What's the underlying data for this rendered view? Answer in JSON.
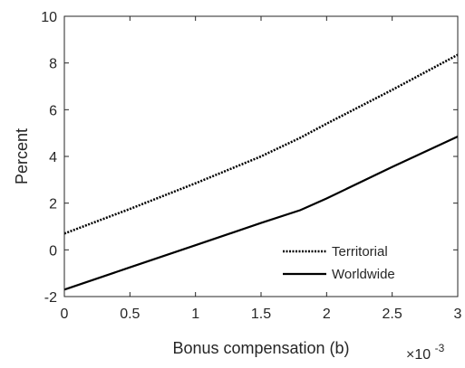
{
  "chart_data": {
    "type": "line",
    "title": "",
    "xlabel": "Bonus compensation (b)",
    "ylabel": "Percent",
    "x_multiplier_base": "×10",
    "x_multiplier_exp": "-3",
    "xlim": [
      0,
      3
    ],
    "ylim": [
      -2,
      10
    ],
    "xticks": [
      0,
      0.5,
      1,
      1.5,
      2,
      2.5,
      3
    ],
    "xtick_labels": [
      "0",
      "0.5",
      "1",
      "1.5",
      "2",
      "2.5",
      "3"
    ],
    "yticks": [
      -2,
      0,
      2,
      4,
      6,
      8,
      10
    ],
    "ytick_labels": [
      "-2",
      "0",
      "2",
      "4",
      "6",
      "8",
      "10"
    ],
    "grid": false,
    "legend_position": "bottom-right",
    "series": [
      {
        "name": "Territorial",
        "style": "dotted",
        "color": "#000000",
        "x": [
          0,
          0.5,
          1,
          1.5,
          1.8,
          2,
          2.5,
          3
        ],
        "y": [
          0.7,
          1.75,
          2.85,
          4.0,
          4.8,
          5.4,
          6.85,
          8.35
        ]
      },
      {
        "name": "Worldwide",
        "style": "solid",
        "color": "#000000",
        "x": [
          0,
          0.5,
          1,
          1.5,
          1.8,
          2,
          2.5,
          3
        ],
        "y": [
          -1.7,
          -0.75,
          0.2,
          1.15,
          1.7,
          2.2,
          3.55,
          4.85
        ]
      }
    ]
  }
}
